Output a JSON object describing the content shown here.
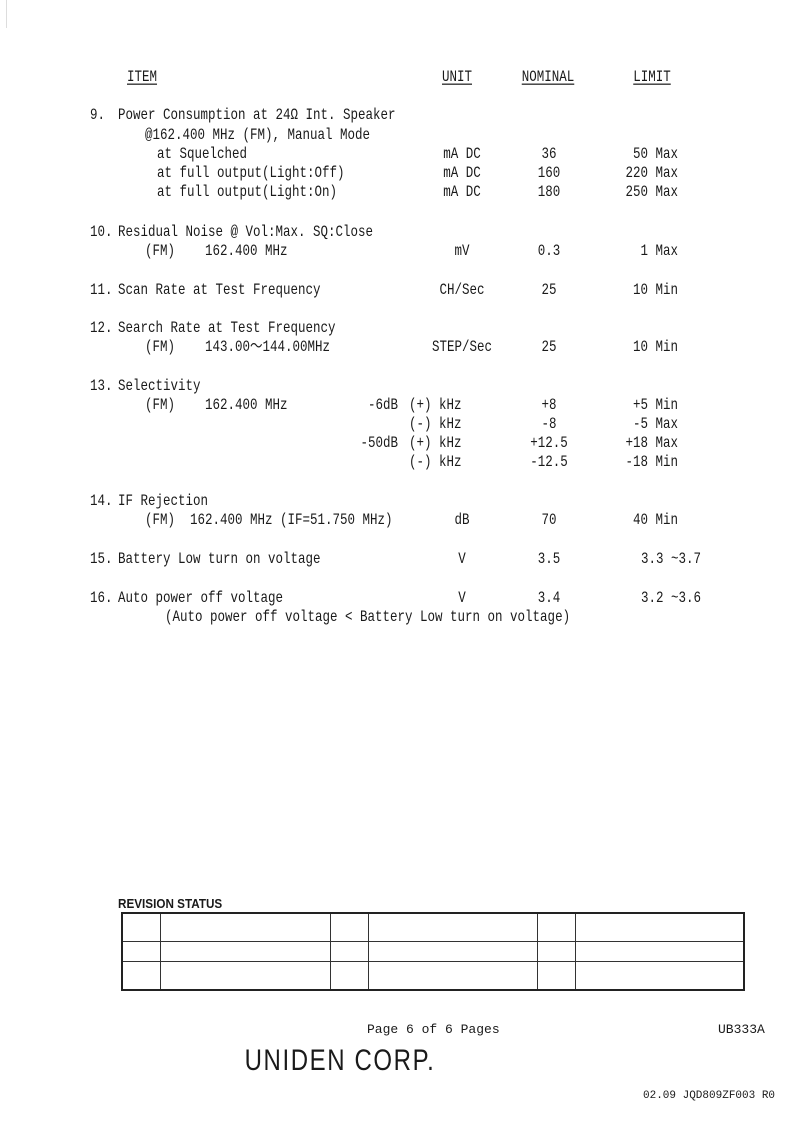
{
  "header": {
    "item": "ITEM",
    "unit": "UNIT",
    "nominal": "NOMINAL",
    "limit": "LIMIT"
  },
  "lines": [
    {
      "num": "9.",
      "text": "Power Consumption at 24Ω Int. Speaker"
    },
    {
      "text": "@162.400 MHz (FM), Manual Mode"
    },
    {
      "text": "at Squelched",
      "unit": "mA DC",
      "nominal": "36",
      "limit": "50 Max"
    },
    {
      "text": "at full output(Light:Off)",
      "unit": "mA DC",
      "nominal": "160",
      "limit": "220 Max"
    },
    {
      "text": "at full output(Light:On)",
      "unit": "mA DC",
      "nominal": "180",
      "limit": "250 Max"
    },
    {
      "num": "10.",
      "text": "Residual Noise @ Vol:Max. SQ:Close"
    },
    {
      "text": "(FM)    162.400 MHz",
      "unit": "mV",
      "nominal": "0.3",
      "limit": "1 Max"
    },
    {
      "num": "11.",
      "text": "Scan Rate at Test Frequency",
      "unit": "CH/Sec",
      "nominal": "25",
      "limit": "10 Min"
    },
    {
      "num": "12.",
      "text": "Search Rate at Test Frequency"
    },
    {
      "text": "(FM)    143.00～144.00MHz",
      "unit": "STEP/Sec",
      "nominal": "25",
      "limit": "10 Min"
    },
    {
      "num": "13.",
      "text": "Selectivity"
    },
    {
      "text": "(FM)    162.400 MHz",
      "sub": "-6dB",
      "unit": "(+) kHz",
      "nominal": "+8",
      "limit": "+5 Min"
    },
    {
      "unit": "(-) kHz",
      "nominal": "-8",
      "limit": "-5 Max"
    },
    {
      "sub": "-50dB",
      "unit": "(+) kHz",
      "nominal": "+12.5",
      "limit": "+18 Max"
    },
    {
      "unit": "(-) kHz",
      "nominal": "-12.5",
      "limit": "-18 Min"
    },
    {
      "num": "14.",
      "text": "IF Rejection"
    },
    {
      "text": "(FM)  162.400 MHz (IF=51.750 MHz)",
      "unit": "dB",
      "nominal": "70",
      "limit": "40 Min"
    },
    {
      "num": "15.",
      "text": "Battery Low turn on voltage",
      "unit": "V",
      "nominal": "3.5",
      "limit": "3.3 ~3.7"
    },
    {
      "num": "16.",
      "text": "Auto power off voltage",
      "unit": "V",
      "nominal": "3.4",
      "limit": "3.2 ~3.6"
    },
    {
      "text": "(Auto power off voltage < Battery Low turn on voltage)"
    }
  ],
  "revision": {
    "title": "REVISION STATUS"
  },
  "footer": {
    "page": "Page 6 of 6 Pages",
    "code": "UB333A",
    "company": "UNIDEN CORP.",
    "ref": "02.09 JQD809ZF003 R0"
  }
}
